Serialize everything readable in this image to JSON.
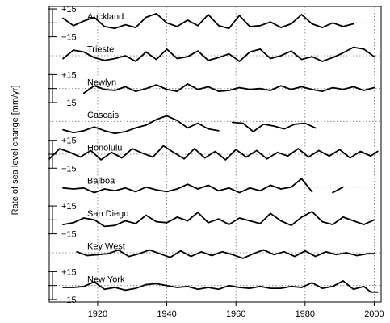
{
  "chart_data": {
    "type": "line",
    "ylabel": "Rate of sea level change [mm/yr]",
    "x_ticks": [
      1920,
      1940,
      1960,
      1980,
      2000
    ],
    "xlim": [
      1906,
      2002
    ],
    "scale_labels": {
      "upper": "+15",
      "lower": "−15"
    },
    "scale_range": [
      -15,
      15
    ],
    "grid": "dotted",
    "series": [
      {
        "name": "Auckland",
        "segments": [
          {
            "x": [
              1910,
              1913,
              1916,
              1919,
              1922,
              1925,
              1928,
              1931,
              1934,
              1937,
              1940,
              1943,
              1946,
              1949,
              1952,
              1955,
              1958,
              1961,
              1964,
              1967,
              1970,
              1973,
              1976,
              1979,
              1982,
              1985,
              1988,
              1991,
              1994
            ],
            "y": [
              5,
              -3,
              2,
              6,
              -4,
              -6,
              -2,
              -5,
              6,
              10,
              0,
              -4,
              3,
              -3,
              9,
              -3,
              -6,
              8,
              -4,
              -3,
              1,
              -5,
              -1,
              9,
              -1,
              -5,
              0,
              -4,
              -1
            ]
          }
        ]
      },
      {
        "name": "Trieste",
        "segments": [
          {
            "x": [
              1910,
              1913,
              1916,
              1919,
              1922,
              1925,
              1928,
              1931,
              1934,
              1937,
              1940,
              1943,
              1946,
              1949,
              1952,
              1955,
              1958,
              1961,
              1964,
              1967,
              1970,
              1973,
              1976,
              1979,
              1982,
              1985,
              1988,
              1991,
              1994,
              1997,
              2000
            ],
            "y": [
              -3,
              6,
              4,
              -2,
              -5,
              -3,
              0,
              -6,
              4,
              -4,
              7,
              -3,
              -1,
              5,
              -5,
              -2,
              2,
              -6,
              4,
              7,
              -3,
              0,
              5,
              -4,
              -1,
              -6,
              -2,
              3,
              9,
              7,
              -1
            ]
          }
        ]
      },
      {
        "name": "Newlyn",
        "segments": [
          {
            "x": [
              1916,
              1919,
              1922,
              1925,
              1928,
              1931,
              1934,
              1937,
              1940,
              1943,
              1946,
              1949,
              1952,
              1955,
              1958,
              1961,
              1964,
              1967,
              1970,
              1973,
              1976,
              1979,
              1982,
              1985,
              1988,
              1991,
              1994,
              1997,
              2000
            ],
            "y": [
              -5,
              3,
              -1,
              -2,
              2,
              -3,
              0,
              4,
              -1,
              -3,
              5,
              -1,
              2,
              -3,
              -2,
              1,
              -1,
              0,
              -2,
              3,
              -1,
              2,
              -1,
              -3,
              1,
              -1,
              2,
              -2,
              1
            ]
          }
        ]
      },
      {
        "name": "Cascais",
        "segments": [
          {
            "x": [
              1910,
              1913,
              1916,
              1919,
              1922,
              1925,
              1928,
              1931,
              1934,
              1937,
              1940,
              1943,
              1946,
              1949,
              1952,
              1955
            ],
            "y": [
              -9,
              -12,
              -10,
              -6,
              -10,
              -13,
              -11,
              -7,
              -4,
              2,
              6,
              1,
              -7,
              -2,
              -8,
              -10
            ]
          },
          {
            "x": [
              1959,
              1962,
              1965,
              1968,
              1971,
              1974,
              1977,
              1980,
              1983
            ],
            "y": [
              -1,
              -2,
              -11,
              -3,
              -5,
              -8,
              -3,
              -2,
              -7
            ]
          }
        ]
      },
      {
        "name": "Honolulu",
        "segments": [
          {
            "x": [
              1906,
              1909,
              1912,
              1915,
              1918,
              1921,
              1924,
              1927,
              1930,
              1933,
              1936,
              1939,
              1942,
              1945,
              1948,
              1951,
              1954,
              1957,
              1960,
              1963,
              1966,
              1969,
              1972,
              1975,
              1978,
              1981,
              1984,
              1987,
              1990,
              1993,
              1996,
              1999,
              2001
            ],
            "y": [
              -5,
              6,
              2,
              -3,
              4,
              -6,
              2,
              -4,
              6,
              1,
              -3,
              9,
              2,
              -5,
              6,
              -4,
              3,
              -6,
              5,
              -3,
              4,
              -5,
              2,
              -2,
              6,
              -3,
              4,
              -2,
              5,
              -4,
              3,
              -2,
              3
            ]
          }
        ]
      },
      {
        "name": "Balboa",
        "segments": [
          {
            "x": [
              1910,
              1913,
              1916,
              1919,
              1922,
              1925,
              1928,
              1931,
              1934,
              1937,
              1940,
              1943,
              1946,
              1949,
              1952,
              1955,
              1958,
              1961,
              1964,
              1967,
              1970,
              1973,
              1976,
              1979,
              1982
            ],
            "y": [
              -1,
              -2,
              -1,
              -6,
              -2,
              -4,
              -1,
              -5,
              0,
              -3,
              -5,
              -2,
              3,
              -2,
              2,
              -4,
              -1,
              -6,
              -1,
              -4,
              2,
              -2,
              0,
              9,
              -5
            ]
          },
          {
            "x": [
              1988,
              1991
            ],
            "y": [
              -6,
              0
            ]
          }
        ]
      },
      {
        "name": "San Diego",
        "segments": [
          {
            "x": [
              1910,
              1913,
              1916,
              1919,
              1922,
              1925,
              1928,
              1931,
              1934,
              1937,
              1940,
              1943,
              1946,
              1949,
              1952,
              1955,
              1958,
              1961,
              1964,
              1967,
              1970,
              1973,
              1976,
              1979,
              1982,
              1985,
              1988,
              1991,
              1994,
              1997,
              2000
            ],
            "y": [
              -5,
              -3,
              2,
              0,
              -7,
              -6,
              -1,
              -4,
              5,
              -2,
              -3,
              3,
              -1,
              8,
              -3,
              1,
              -5,
              2,
              -1,
              -4,
              7,
              -1,
              -6,
              3,
              9,
              -2,
              -5,
              3,
              -1,
              -5,
              0
            ]
          }
        ]
      },
      {
        "name": "Key West",
        "segments": [
          {
            "x": [
              1914,
              1917,
              1920,
              1923,
              1926,
              1929,
              1932,
              1935,
              1938,
              1941,
              1944,
              1947,
              1950,
              1953,
              1956,
              1959,
              1962,
              1965,
              1968,
              1971,
              1974,
              1977,
              1980,
              1983,
              1986,
              1989,
              1992,
              1995,
              1998,
              2000
            ],
            "y": [
              1,
              -3,
              -2,
              -1,
              3,
              -4,
              -1,
              3,
              -1,
              -5,
              2,
              -4,
              1,
              -3,
              1,
              -2,
              -6,
              -1,
              3,
              -2,
              1,
              -4,
              2,
              -4,
              1,
              -2,
              0,
              -3,
              -1,
              -1
            ]
          }
        ]
      },
      {
        "name": "New York",
        "segments": [
          {
            "x": [
              1910,
              1913,
              1916,
              1919,
              1922,
              1925,
              1928,
              1931,
              1934,
              1937,
              1940,
              1943,
              1946,
              1949,
              1952,
              1955,
              1958,
              1961,
              1964,
              1967,
              1970,
              1973,
              1976,
              1979,
              1982,
              1985,
              1988,
              1991,
              1994,
              1997,
              1999,
              2001
            ],
            "y": [
              -2,
              -2,
              -1,
              4,
              -4,
              -2,
              -5,
              -3,
              1,
              2,
              0,
              -2,
              -1,
              -4,
              -2,
              -4,
              0,
              -2,
              -3,
              -1,
              -3,
              -3,
              -1,
              -2,
              3,
              -3,
              -1,
              5,
              -4,
              -1,
              -7,
              -7
            ]
          }
        ]
      }
    ]
  }
}
